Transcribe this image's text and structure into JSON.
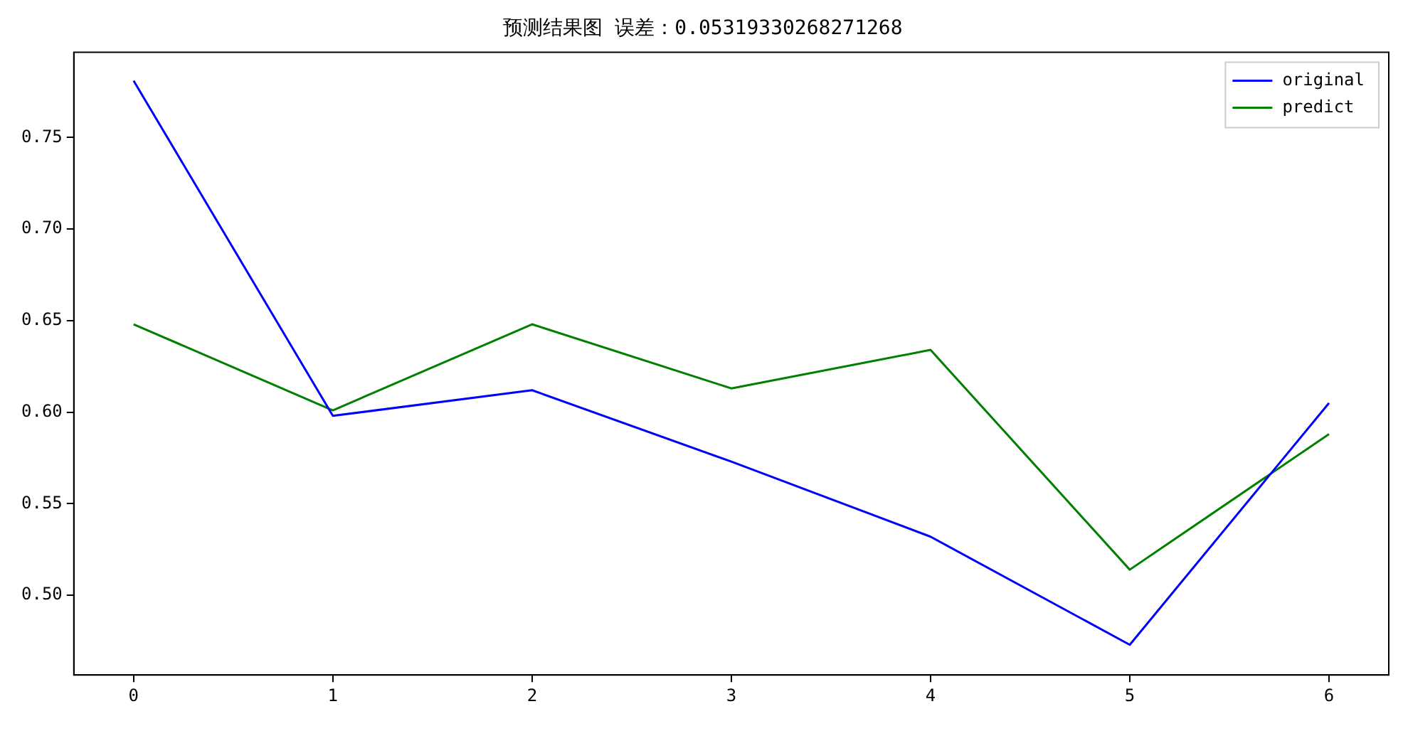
{
  "chart_data": {
    "type": "line",
    "title": "预测结果图 误差：0.05319330268271268",
    "x": [
      0,
      1,
      2,
      3,
      4,
      5,
      6
    ],
    "series": [
      {
        "name": "original",
        "color": "#0000ff",
        "values": [
          0.781,
          0.598,
          0.612,
          0.573,
          0.532,
          0.473,
          0.605
        ]
      },
      {
        "name": "predict",
        "color": "#008000",
        "values": [
          0.648,
          0.601,
          0.648,
          0.613,
          0.634,
          0.514,
          0.588
        ]
      }
    ],
    "xlim": [
      -0.3,
      6.3
    ],
    "xticks": [
      0,
      1,
      2,
      3,
      4,
      5,
      6
    ],
    "ylim": [
      0.4565,
      0.7965
    ],
    "yticks": [
      {
        "value": 0.5,
        "label": "0.50"
      },
      {
        "value": 0.55,
        "label": "0.55"
      },
      {
        "value": 0.6,
        "label": "0.60"
      },
      {
        "value": 0.65,
        "label": "0.65"
      },
      {
        "value": 0.7,
        "label": "0.70"
      },
      {
        "value": 0.75,
        "label": "0.75"
      }
    ],
    "grid": false,
    "legend": "top right",
    "marker": "none",
    "line_style": "solid"
  }
}
